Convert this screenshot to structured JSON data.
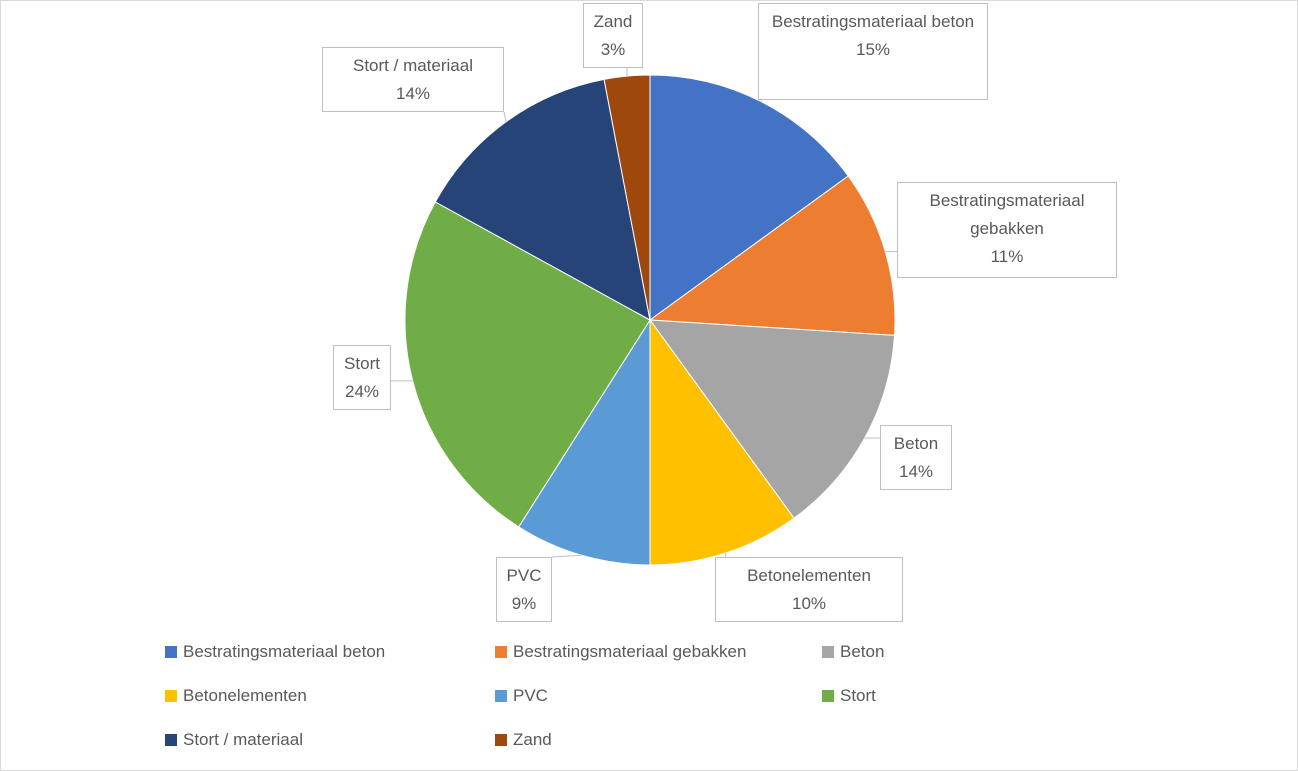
{
  "chart_data": {
    "type": "pie",
    "categories": [
      "Bestratingsmateriaal beton",
      "Bestratingsmateriaal gebakken",
      "Beton",
      "Betonelementen",
      "PVC",
      "Stort",
      "Stort / materiaal",
      "Zand"
    ],
    "values": [
      15,
      11,
      14,
      10,
      9,
      24,
      14,
      3
    ],
    "value_labels": [
      "15%",
      "11%",
      "14%",
      "10%",
      "9%",
      "24%",
      "14%",
      "3%"
    ],
    "colors": [
      "#4472c4",
      "#ed7d31",
      "#a5a5a5",
      "#ffc000",
      "#5b9bd5",
      "#70ad47",
      "#264478",
      "#9e480e"
    ],
    "legend": "bottom"
  }
}
